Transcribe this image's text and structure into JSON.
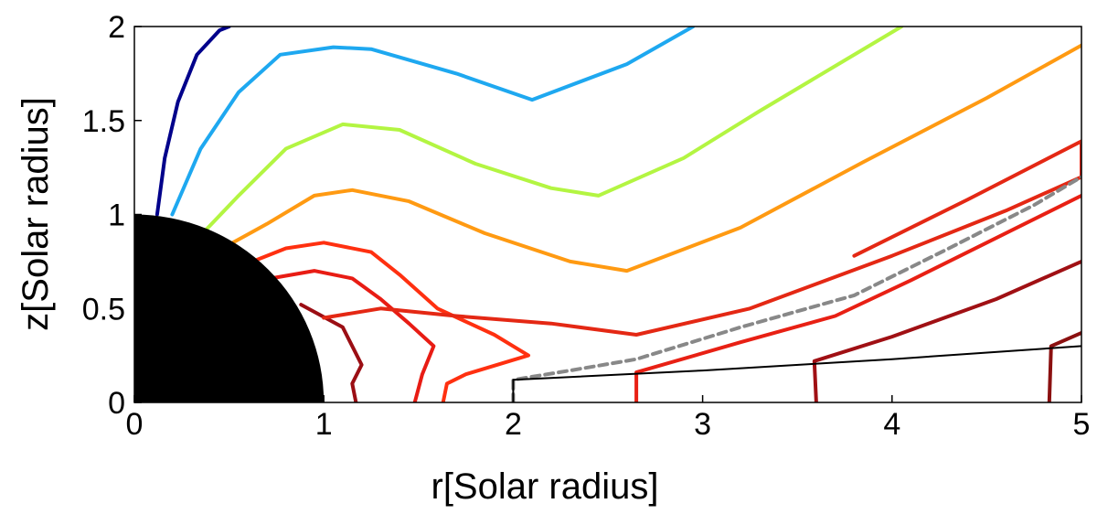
{
  "chart_data": {
    "type": "line",
    "title": "",
    "xlabel": "r[Solar radius]",
    "ylabel": "z[Solar radius]",
    "xlim": [
      0,
      5
    ],
    "ylim": [
      0,
      2
    ],
    "xticks": [
      "0",
      "1",
      "2",
      "3",
      "4",
      "5"
    ],
    "yticks": [
      "0",
      "0.5",
      "1",
      "1.5",
      "2"
    ],
    "grid": false,
    "legend": "none",
    "sun": {
      "radius": 1,
      "color": "#000000"
    },
    "series": [
      {
        "color": "#00008b",
        "points": [
          [
            0.12,
            1.0
          ],
          [
            0.16,
            1.3
          ],
          [
            0.23,
            1.6
          ],
          [
            0.33,
            1.85
          ],
          [
            0.45,
            1.98
          ],
          [
            0.5,
            2.0
          ]
        ]
      },
      {
        "color": "#1ea8f0",
        "points": [
          [
            0.2,
            1.0
          ],
          [
            0.35,
            1.35
          ],
          [
            0.55,
            1.65
          ],
          [
            0.77,
            1.85
          ],
          [
            1.05,
            1.89
          ],
          [
            1.25,
            1.88
          ],
          [
            1.7,
            1.75
          ],
          [
            2.1,
            1.61
          ],
          [
            2.6,
            1.8
          ],
          [
            2.95,
            2.0
          ]
        ]
      },
      {
        "color": "#b3f542",
        "points": [
          [
            0.38,
            0.92
          ],
          [
            0.55,
            1.1
          ],
          [
            0.8,
            1.35
          ],
          [
            1.1,
            1.48
          ],
          [
            1.4,
            1.45
          ],
          [
            1.8,
            1.27
          ],
          [
            2.2,
            1.14
          ],
          [
            2.45,
            1.1
          ],
          [
            2.9,
            1.3
          ],
          [
            3.3,
            1.55
          ],
          [
            3.75,
            1.82
          ],
          [
            4.05,
            2.0
          ]
        ]
      },
      {
        "color": "#ff9a12",
        "points": [
          [
            0.52,
            0.85
          ],
          [
            0.7,
            0.95
          ],
          [
            0.95,
            1.1
          ],
          [
            1.15,
            1.13
          ],
          [
            1.45,
            1.07
          ],
          [
            1.85,
            0.9
          ],
          [
            2.3,
            0.75
          ],
          [
            2.6,
            0.7
          ],
          [
            3.2,
            0.93
          ],
          [
            3.85,
            1.28
          ],
          [
            4.5,
            1.62
          ],
          [
            5.0,
            1.9
          ]
        ]
      },
      {
        "color": "#ff3010",
        "points": [
          [
            0.6,
            0.74
          ],
          [
            0.8,
            0.82
          ],
          [
            1.0,
            0.85
          ],
          [
            1.25,
            0.8
          ],
          [
            1.4,
            0.68
          ],
          [
            1.6,
            0.5
          ],
          [
            1.9,
            0.36
          ],
          [
            2.08,
            0.25
          ],
          [
            1.75,
            0.15
          ],
          [
            1.65,
            0.1
          ],
          [
            1.63,
            0.0
          ]
        ]
      },
      {
        "color": "#e81c14",
        "points": [
          [
            0.72,
            0.66
          ],
          [
            0.95,
            0.7
          ],
          [
            1.15,
            0.66
          ],
          [
            1.3,
            0.55
          ],
          [
            1.45,
            0.42
          ],
          [
            1.58,
            0.3
          ],
          [
            1.52,
            0.15
          ],
          [
            1.48,
            0.0
          ]
        ]
      },
      {
        "color": "#9b0e14",
        "points": [
          [
            0.88,
            0.52
          ],
          [
            1.1,
            0.4
          ],
          [
            1.2,
            0.2
          ],
          [
            1.15,
            0.1
          ],
          [
            1.17,
            0.0
          ]
        ]
      },
      {
        "color": "#e42814",
        "points": [
          [
            1.0,
            0.45
          ],
          [
            1.3,
            0.5
          ],
          [
            1.7,
            0.46
          ],
          [
            2.2,
            0.42
          ],
          [
            2.65,
            0.36
          ],
          [
            3.25,
            0.5
          ],
          [
            4.0,
            0.78
          ],
          [
            4.6,
            1.02
          ],
          [
            5.0,
            1.2
          ],
          [
            5.0,
            1.39
          ],
          [
            4.4,
            1.08
          ],
          [
            3.8,
            0.78
          ]
        ]
      },
      {
        "color": "#e82014",
        "points": [
          [
            2.65,
            0.0
          ],
          [
            2.65,
            0.16
          ],
          [
            3.2,
            0.32
          ],
          [
            3.7,
            0.46
          ],
          [
            4.1,
            0.65
          ],
          [
            4.5,
            0.85
          ],
          [
            5.0,
            1.1
          ]
        ]
      },
      {
        "color": "#a01014",
        "points": [
          [
            3.6,
            0.0
          ],
          [
            3.59,
            0.22
          ],
          [
            4.0,
            0.35
          ],
          [
            4.55,
            0.55
          ],
          [
            5.0,
            0.75
          ]
        ]
      },
      {
        "color": "#8b1010",
        "points": [
          [
            4.83,
            0.0
          ],
          [
            4.84,
            0.3
          ],
          [
            5.0,
            0.37
          ]
        ]
      },
      {
        "color": "#888888",
        "dashed": true,
        "points": [
          [
            2.0,
            0.0
          ],
          [
            2.0,
            0.12
          ],
          [
            2.3,
            0.17
          ],
          [
            2.65,
            0.23
          ],
          [
            3.2,
            0.4
          ],
          [
            3.8,
            0.57
          ],
          [
            4.3,
            0.82
          ],
          [
            4.75,
            1.05
          ],
          [
            5.0,
            1.2
          ]
        ]
      },
      {
        "color": "#000000",
        "thin": true,
        "points": [
          [
            2.0,
            0.0
          ],
          [
            2.0,
            0.12
          ],
          [
            3.0,
            0.17
          ],
          [
            4.0,
            0.23
          ],
          [
            5.0,
            0.3
          ]
        ]
      }
    ]
  }
}
